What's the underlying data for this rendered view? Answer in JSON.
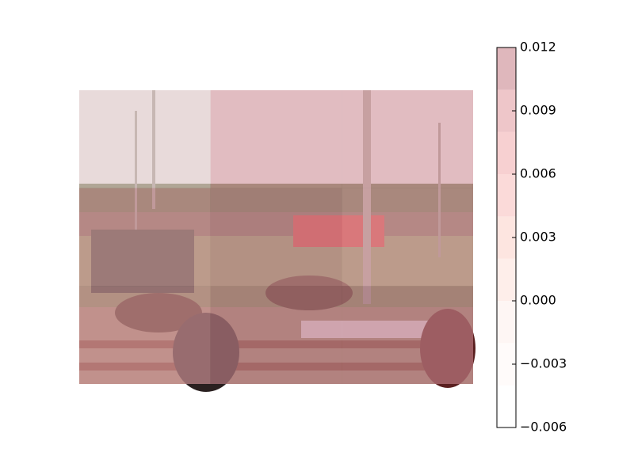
{
  "chart_data": {
    "type": "heatmap",
    "values": [
      [
        0.0,
        0.006,
        0.006
      ],
      [
        0.008,
        0.009,
        0.008
      ],
      [
        0.009,
        0.011,
        0.01
      ]
    ],
    "colors": [
      "#ffffff",
      "#fff8f6",
      "#fef0ec",
      "#fde2dc",
      "#fcd3cc",
      "#f8c2bf",
      "#f1b0b2",
      "#e3a0a5",
      "#c98790"
    ],
    "clim": [
      -0.006,
      0.012
    ],
    "cticks": [
      {
        "value": -0.006,
        "label": "−0.006"
      },
      {
        "value": -0.003,
        "label": "−0.003"
      },
      {
        "value": 0.0,
        "label": "0.000"
      },
      0.003,
      0.006,
      0.009,
      0.012
    ]
  }
}
